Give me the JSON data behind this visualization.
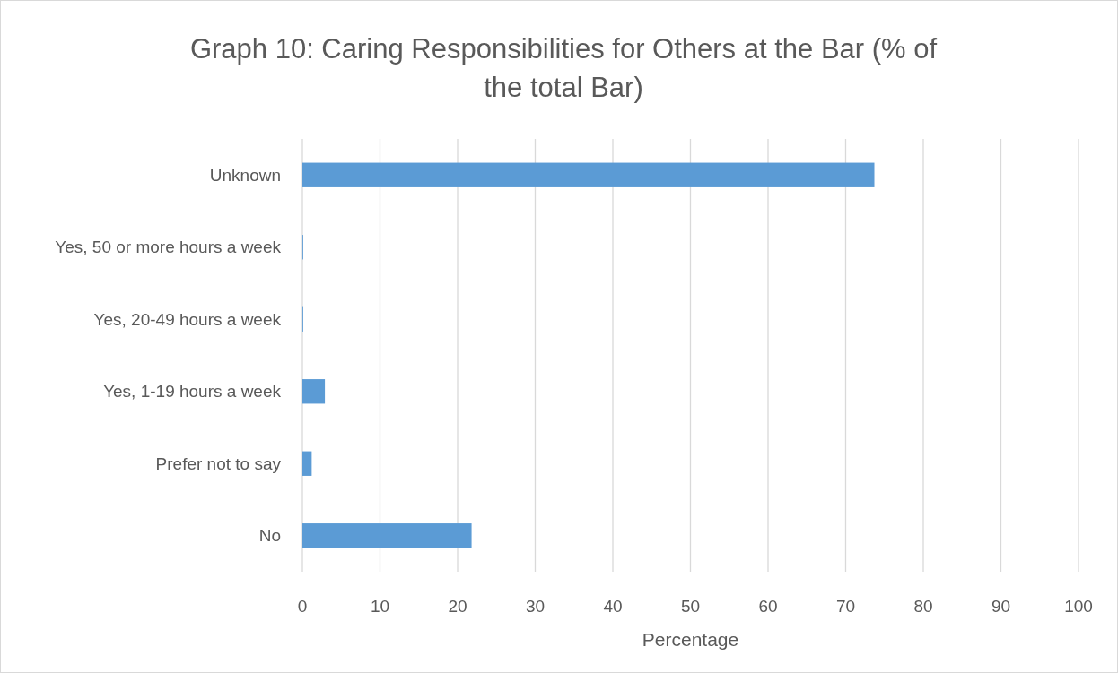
{
  "chart_data": {
    "type": "bar",
    "orientation": "horizontal",
    "title": "Graph 10: Caring Responsibilities for Others at the Bar (% of the total Bar)",
    "xlabel": "Percentage",
    "categories": [
      "Unknown",
      "Yes, 50 or more hours a week",
      "Yes, 20-49 hours a week",
      "Yes, 1-19 hours a week",
      "Prefer not to say",
      "No"
    ],
    "values": [
      73.7,
      0.1,
      0.1,
      2.9,
      1.2,
      21.8
    ],
    "color": "#5b9bd5",
    "xlim": [
      0,
      100
    ],
    "xticks": [
      0,
      10,
      20,
      30,
      40,
      50,
      60,
      70,
      80,
      90,
      100
    ],
    "grid": "x"
  }
}
